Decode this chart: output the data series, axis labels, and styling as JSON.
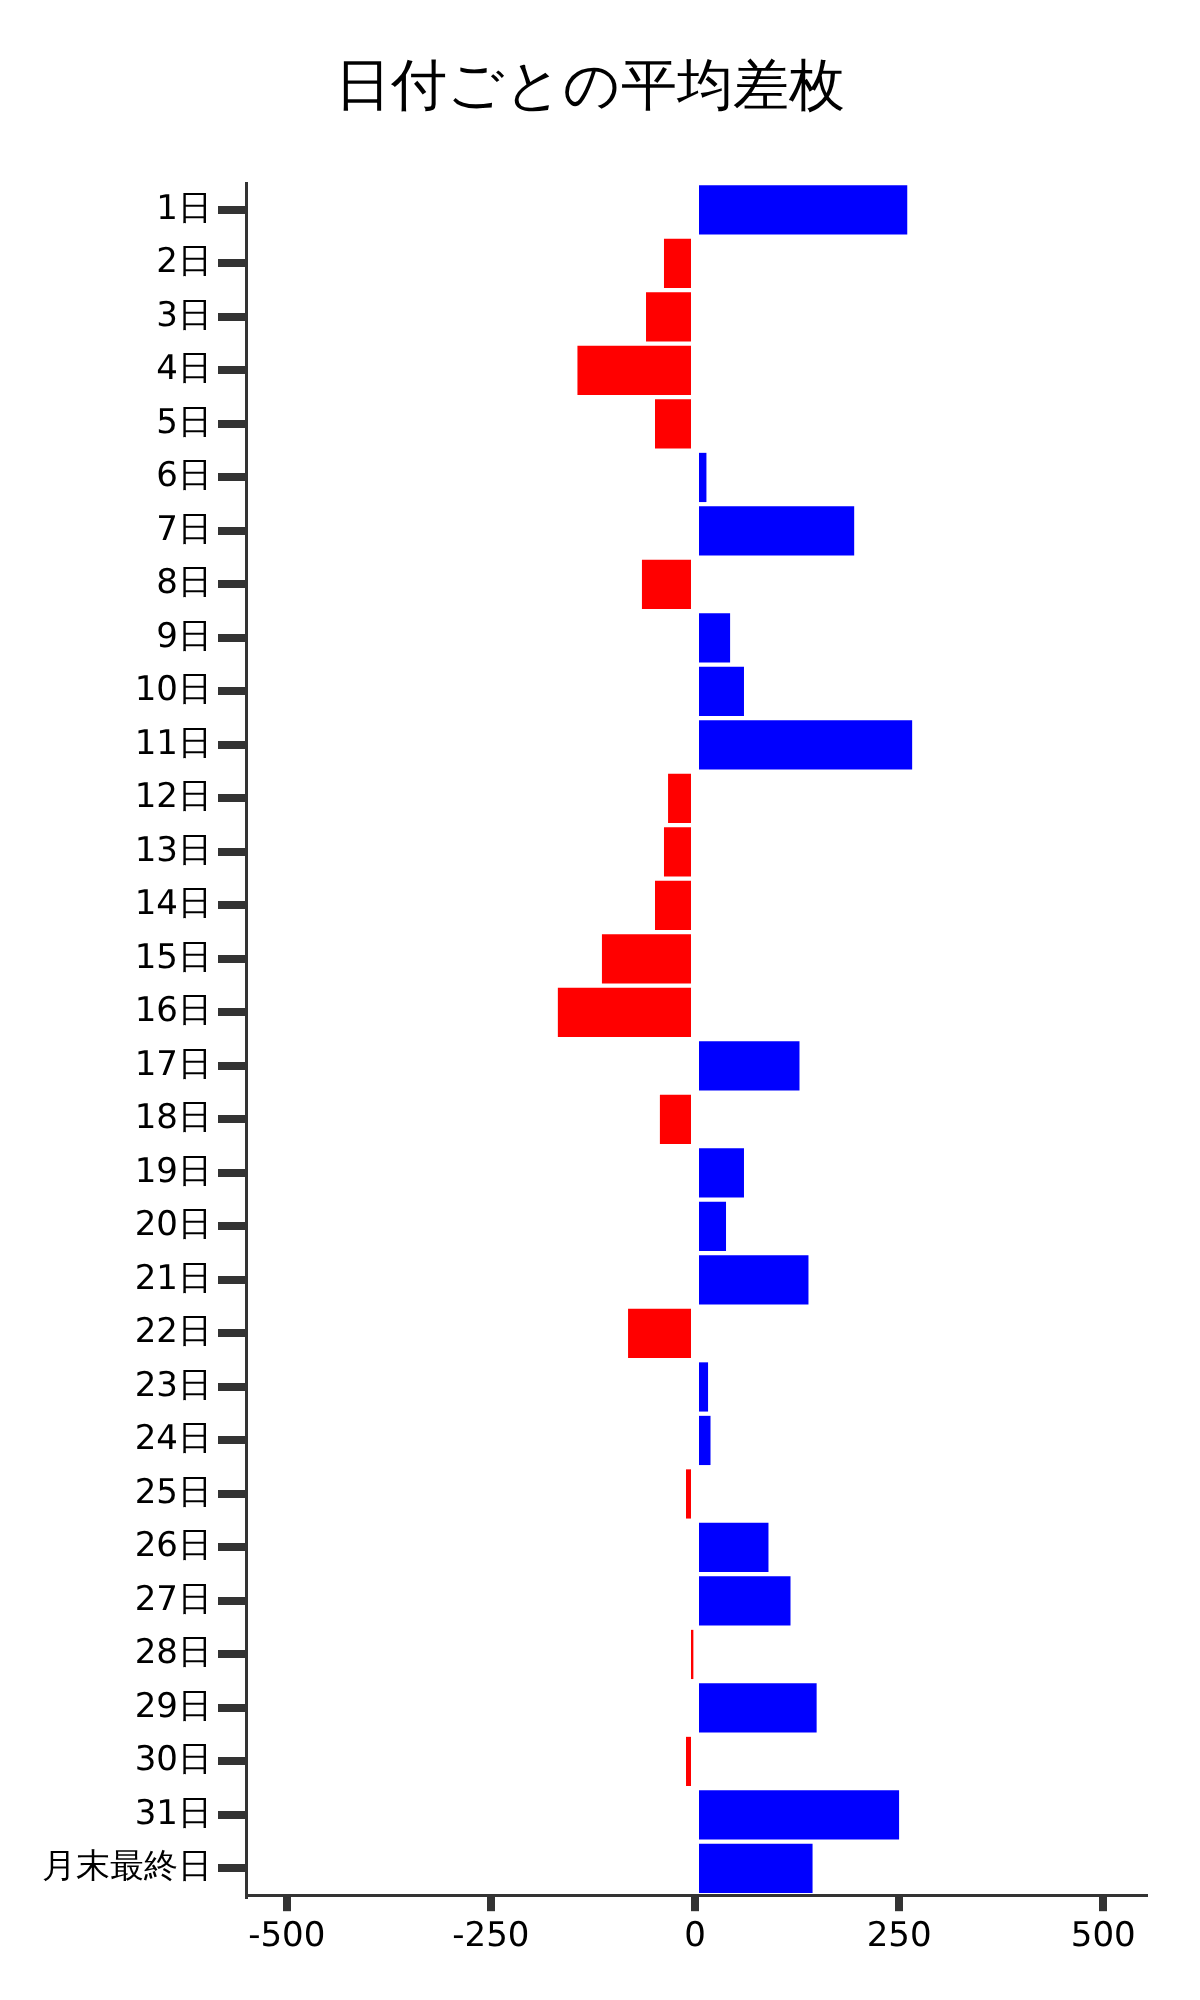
{
  "chart_data": {
    "type": "bar",
    "orientation": "horizontal",
    "title": "日付ごとの平均差枚",
    "categories": [
      "1日",
      "2日",
      "3日",
      "4日",
      "5日",
      "6日",
      "7日",
      "8日",
      "9日",
      "10日",
      "11日",
      "12日",
      "13日",
      "14日",
      "15日",
      "16日",
      "17日",
      "18日",
      "19日",
      "20日",
      "21日",
      "22日",
      "23日",
      "24日",
      "25日",
      "26日",
      "27日",
      "28日",
      "29日",
      "30日",
      "31日",
      "月末最終日"
    ],
    "values": [
      260,
      -38,
      -60,
      -144,
      -49,
      14,
      195,
      -65,
      43,
      60,
      266,
      -33,
      -38,
      -49,
      -114,
      -168,
      128,
      -43,
      60,
      38,
      139,
      -82,
      16,
      19,
      -11,
      90,
      117,
      -2,
      149,
      -11,
      250,
      144
    ],
    "colors": [
      "#0000ff",
      "#ff0000",
      "#ff0000",
      "#ff0000",
      "#ff0000",
      "#0000ff",
      "#0000ff",
      "#ff0000",
      "#0000ff",
      "#0000ff",
      "#0000ff",
      "#ff0000",
      "#ff0000",
      "#ff0000",
      "#ff0000",
      "#ff0000",
      "#0000ff",
      "#ff0000",
      "#0000ff",
      "#0000ff",
      "#0000ff",
      "#ff0000",
      "#0000ff",
      "#0000ff",
      "#ff0000",
      "#0000ff",
      "#0000ff",
      "#ff0000",
      "#0000ff",
      "#ff0000",
      "#0000ff",
      "#0000ff"
    ],
    "xlim": [
      -550,
      550
    ],
    "xticks": [
      -500,
      -250,
      0,
      250,
      500
    ],
    "grid": false,
    "legend": false
  }
}
